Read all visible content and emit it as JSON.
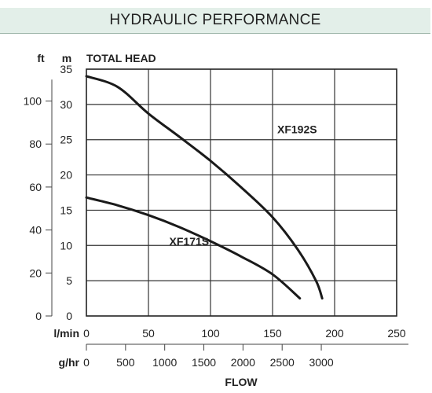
{
  "chart_data": {
    "type": "line",
    "title": "HYDRAULIC PERFORMANCE",
    "ylabel": "TOTAL HEAD",
    "y_units": {
      "left": "ft",
      "right": "m"
    },
    "xlabel": "FLOW",
    "x_units": {
      "primary": "l/min",
      "secondary": "g/hr"
    },
    "xlim": [
      0,
      250
    ],
    "ylim": [
      0,
      35
    ],
    "x_ticks": [
      0,
      50,
      100,
      150,
      200,
      250
    ],
    "y_ticks_m": [
      0,
      5,
      10,
      15,
      20,
      25,
      30,
      35
    ],
    "y_ticks_ft": [
      0,
      20,
      40,
      60,
      80,
      100
    ],
    "x_ticks_gph": [
      0,
      500,
      1000,
      1500,
      2000,
      2500,
      3000
    ],
    "grid": true,
    "series": [
      {
        "name": "XF192S",
        "x": [
          0,
          25,
          50,
          75,
          100,
          125,
          150,
          170,
          185,
          190
        ],
        "y": [
          34,
          32.5,
          28.7,
          25.4,
          22,
          18.2,
          14,
          9.5,
          5,
          2.5
        ]
      },
      {
        "name": "XF171S",
        "x": [
          0,
          25,
          50,
          75,
          100,
          125,
          150,
          172
        ],
        "y": [
          16.8,
          15.7,
          14.3,
          12.6,
          10.6,
          8.4,
          5.9,
          2.5
        ]
      }
    ]
  }
}
